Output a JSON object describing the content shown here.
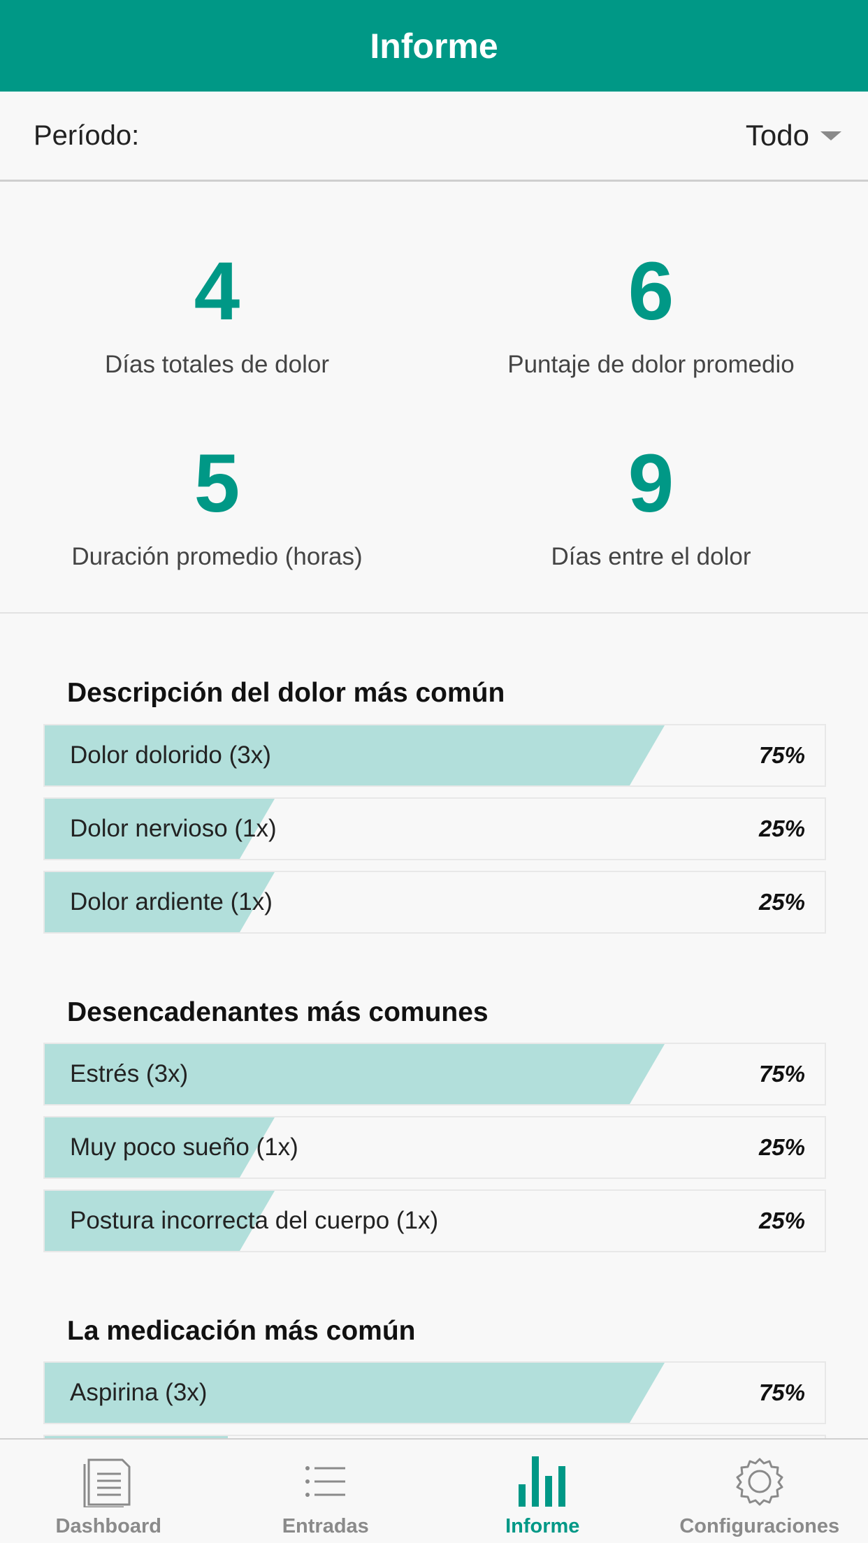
{
  "header": {
    "title": "Informe"
  },
  "period": {
    "label": "Período:",
    "value": "Todo"
  },
  "stats": [
    {
      "value": "4",
      "caption": "Días totales de dolor"
    },
    {
      "value": "6",
      "caption": "Puntaje de dolor promedio"
    },
    {
      "value": "5",
      "caption": "Duración promedio (horas)"
    },
    {
      "value": "9",
      "caption": "Días entre el dolor"
    }
  ],
  "sections": [
    {
      "title": "Descripción del dolor más común",
      "items": [
        {
          "label": "Dolor dolorido (3x)",
          "percent": "75%",
          "fraction": 0.75
        },
        {
          "label": "Dolor nervioso (1x)",
          "percent": "25%",
          "fraction": 0.25
        },
        {
          "label": "Dolor ardiente (1x)",
          "percent": "25%",
          "fraction": 0.25
        }
      ]
    },
    {
      "title": "Desencadenantes más comunes",
      "items": [
        {
          "label": "Estrés (3x)",
          "percent": "75%",
          "fraction": 0.75
        },
        {
          "label": "Muy poco sueño (1x)",
          "percent": "25%",
          "fraction": 0.25
        },
        {
          "label": "Postura incorrecta del cuerpo (1x)",
          "percent": "25%",
          "fraction": 0.25
        }
      ]
    },
    {
      "title": "La medicación más común",
      "items": [
        {
          "label": "Aspirina (3x)",
          "percent": "75%",
          "fraction": 0.75
        }
      ]
    }
  ],
  "nav": [
    {
      "label": "Dashboard",
      "icon": "document-icon",
      "active": false
    },
    {
      "label": "Entradas",
      "icon": "list-icon",
      "active": false
    },
    {
      "label": "Informe",
      "icon": "bar-chart-icon",
      "active": true
    },
    {
      "label": "Configuraciones",
      "icon": "gear-icon",
      "active": false
    }
  ],
  "colors": {
    "primary": "#009886",
    "bar_fill": "#b2dfdb"
  }
}
